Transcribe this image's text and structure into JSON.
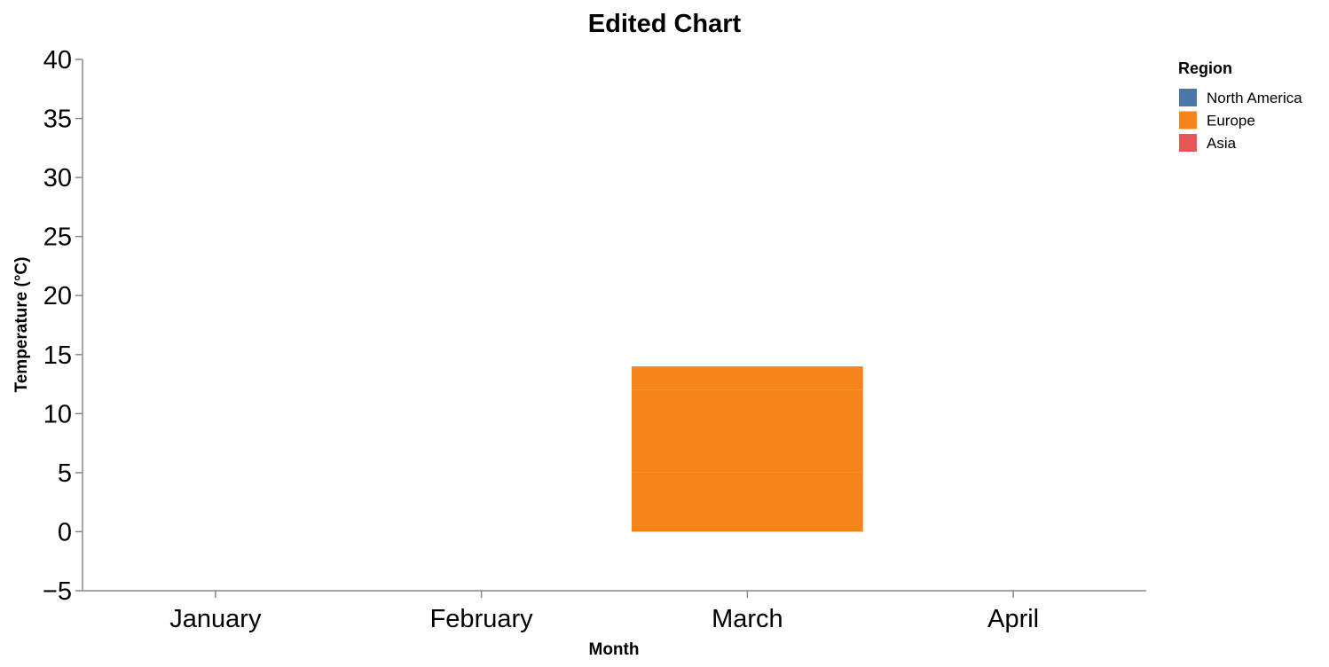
{
  "chart_data": {
    "type": "bar",
    "stacked": true,
    "title": "Edited Chart",
    "xlabel": "Month",
    "ylabel": "Temperature (°C)",
    "categories": [
      "January",
      "February",
      "March",
      "April"
    ],
    "ylim": [
      -5,
      40
    ],
    "yticks": [
      -5,
      0,
      5,
      10,
      15,
      20,
      25,
      30,
      35,
      40
    ],
    "ytick_labels": [
      "−5",
      "0",
      "5",
      "10",
      "15",
      "20",
      "25",
      "30",
      "35",
      "40"
    ],
    "grid": false,
    "legend": {
      "title": "Region",
      "placement": "top-right",
      "entries": [
        {
          "name": "North America",
          "color": "#4c78a8"
        },
        {
          "name": "Europe",
          "color": "#f58518"
        },
        {
          "name": "Asia",
          "color": "#e45756"
        }
      ]
    },
    "series": [
      {
        "name": "North America",
        "color": "#4c78a8",
        "values": [
          null,
          null,
          null,
          null
        ]
      },
      {
        "name": "Europe",
        "color": "#f58518",
        "values": [
          null,
          null,
          [
            [
              0,
              5
            ],
            [
              5,
              12
            ],
            [
              12,
              14
            ]
          ],
          null
        ]
      },
      {
        "name": "Asia",
        "color": "#e45756",
        "values": [
          null,
          null,
          null,
          null
        ]
      }
    ]
  }
}
